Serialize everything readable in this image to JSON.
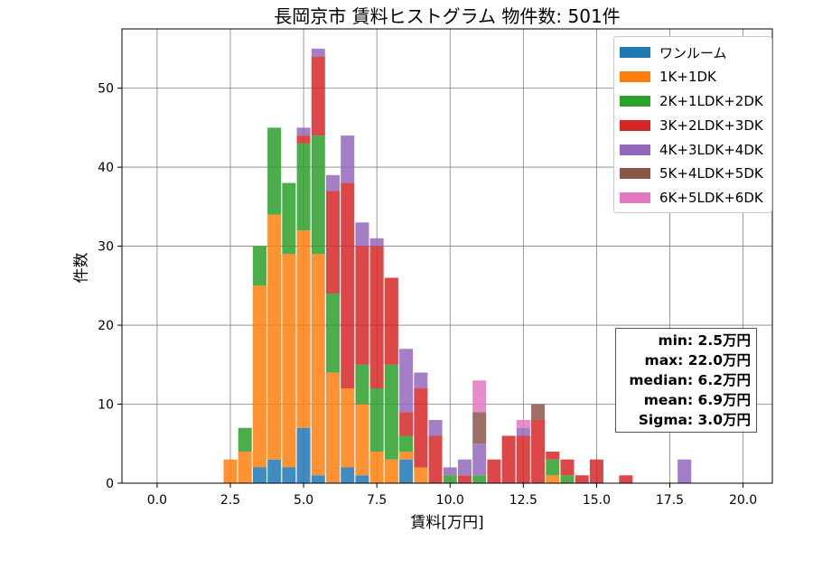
{
  "chart_data": {
    "type": "bar",
    "title": "長岡京市 賃料ヒストグラム  物件数: 501件",
    "xlabel": "賃料[万円]",
    "ylabel": "件数",
    "xlim": [
      -1.2,
      21.0
    ],
    "ylim": [
      0,
      57.5
    ],
    "xticks": [
      "0.0",
      "2.5",
      "5.0",
      "7.5",
      "10.0",
      "12.5",
      "15.0",
      "17.5",
      "20.0"
    ],
    "xtick_values": [
      0,
      2.5,
      5,
      7.5,
      10,
      12.5,
      15,
      17.5,
      20
    ],
    "yticks": [
      "0",
      "10",
      "20",
      "30",
      "40",
      "50"
    ],
    "ytick_values": [
      0,
      10,
      20,
      30,
      40,
      50
    ],
    "grid": true,
    "legend_position": "top-right",
    "bin_width": 0.5,
    "bin_starts": [
      2.25,
      2.75,
      3.25,
      3.75,
      4.25,
      4.75,
      5.25,
      5.75,
      6.25,
      6.75,
      7.25,
      7.75,
      8.25,
      8.75,
      9.25,
      9.75,
      10.25,
      10.75,
      11.25,
      11.75,
      12.25,
      12.75,
      13.25,
      13.75,
      14.25,
      14.75,
      15.75,
      17.75
    ],
    "series": [
      {
        "name": "ワンルーム",
        "color": "#1f77b4",
        "values": [
          0,
          0,
          2,
          3,
          2,
          7,
          1,
          0,
          2,
          1,
          0,
          0,
          3,
          0,
          0,
          0,
          0,
          0,
          0,
          0,
          0,
          0,
          0,
          0,
          0,
          0,
          0,
          0
        ]
      },
      {
        "name": "1K+1DK",
        "color": "#ff7f0e",
        "values": [
          3,
          4,
          23,
          31,
          27,
          25,
          28,
          14,
          10,
          9,
          4,
          3,
          1,
          2,
          0,
          0,
          0,
          0,
          0,
          0,
          0,
          0,
          1,
          0,
          0,
          0,
          0,
          0
        ]
      },
      {
        "name": "2K+1LDK+2DK",
        "color": "#2ca02c",
        "values": [
          0,
          3,
          5,
          11,
          9,
          11,
          15,
          10,
          0,
          5,
          8,
          12,
          2,
          0,
          0,
          1,
          0,
          1,
          0,
          0,
          0,
          0,
          2,
          1,
          0,
          0,
          0,
          0
        ]
      },
      {
        "name": "3K+2LDK+3DK",
        "color": "#d62728",
        "values": [
          0,
          0,
          0,
          0,
          0,
          1,
          10,
          13,
          26,
          15,
          18,
          11,
          3,
          10,
          6,
          0,
          1,
          0,
          3,
          6,
          6,
          8,
          1,
          2,
          1,
          3,
          1,
          0
        ]
      },
      {
        "name": "4K+3LDK+4DK",
        "color": "#9467bd",
        "values": [
          0,
          0,
          0,
          0,
          0,
          1,
          1,
          2,
          6,
          3,
          1,
          0,
          8,
          2,
          2,
          1,
          2,
          4,
          0,
          0,
          1,
          0,
          0,
          0,
          0,
          0,
          0,
          3
        ]
      },
      {
        "name": "5K+4LDK+5DK",
        "color": "#8c564b",
        "values": [
          0,
          0,
          0,
          0,
          0,
          0,
          0,
          0,
          0,
          0,
          0,
          0,
          0,
          0,
          0,
          0,
          0,
          4,
          0,
          0,
          0,
          2,
          0,
          0,
          0,
          0,
          0,
          0
        ]
      },
      {
        "name": "6K+5LDK+6DK",
        "color": "#e377c2",
        "values": [
          0,
          0,
          0,
          0,
          0,
          0,
          0,
          0,
          0,
          0,
          0,
          0,
          0,
          0,
          0,
          0,
          0,
          4,
          0,
          0,
          1,
          0,
          0,
          0,
          0,
          0,
          0,
          0
        ]
      }
    ],
    "stats_box": [
      "min: 2.5万円",
      "max: 22.0万円",
      "median: 6.2万円",
      "mean: 6.9万円",
      "Sigma: 3.0万円"
    ]
  }
}
